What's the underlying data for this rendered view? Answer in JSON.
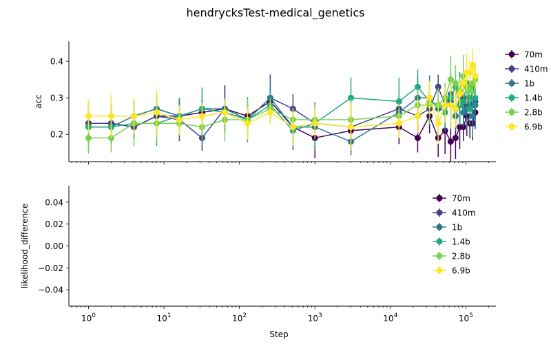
{
  "title": "hendrycksTest-medical_genetics",
  "chart_data": [
    {
      "type": "line",
      "ylabel": "acc",
      "xlabel": "",
      "xscale": "log",
      "xlim": [
        0.55,
        250000
      ],
      "ylim": [
        0.125,
        0.455
      ],
      "yticks": [
        0.2,
        0.3,
        0.4
      ],
      "ytick_labels": [
        "0.2",
        "0.3",
        "0.4"
      ],
      "legend_position": "outside-right",
      "series": [
        {
          "name": "70m",
          "color": "#440154",
          "points": [
            [
              1,
              0.23
            ],
            [
              2,
              0.23
            ],
            [
              4,
              0.22
            ],
            [
              8,
              0.25
            ],
            [
              16,
              0.25
            ],
            [
              32,
              0.26
            ],
            [
              64,
              0.27
            ],
            [
              128,
              0.25
            ],
            [
              256,
              0.29
            ],
            [
              512,
              0.22
            ],
            [
              1000,
              0.19
            ],
            [
              3000,
              0.21
            ],
            [
              13000,
              0.22
            ],
            [
              23000,
              0.19
            ],
            [
              33000,
              0.25
            ],
            [
              43000,
              0.19
            ],
            [
              53000,
              0.21
            ],
            [
              63000,
              0.18
            ],
            [
              73000,
              0.19
            ],
            [
              83000,
              0.22
            ],
            [
              93000,
              0.22
            ],
            [
              103000,
              0.25
            ],
            [
              113000,
              0.23
            ],
            [
              123000,
              0.23
            ],
            [
              133000,
              0.26
            ]
          ]
        },
        {
          "name": "410m",
          "color": "#414487",
          "points": [
            [
              1,
              0.23
            ],
            [
              2,
              0.23
            ],
            [
              4,
              0.22
            ],
            [
              8,
              0.25
            ],
            [
              16,
              0.24
            ],
            [
              32,
              0.19
            ],
            [
              64,
              0.27
            ],
            [
              128,
              0.24
            ],
            [
              256,
              0.3
            ],
            [
              512,
              0.27
            ],
            [
              1000,
              0.23
            ],
            [
              3000,
              0.22
            ],
            [
              13000,
              0.27
            ],
            [
              23000,
              0.25
            ],
            [
              33000,
              0.27
            ],
            [
              43000,
              0.33
            ],
            [
              53000,
              0.28
            ],
            [
              63000,
              0.29
            ],
            [
              73000,
              0.27
            ],
            [
              83000,
              0.28
            ],
            [
              93000,
              0.3
            ],
            [
              103000,
              0.28
            ],
            [
              113000,
              0.3
            ],
            [
              123000,
              0.28
            ],
            [
              133000,
              0.29
            ]
          ]
        },
        {
          "name": "1b",
          "color": "#2a788e",
          "points": [
            [
              1,
              0.22
            ],
            [
              2,
              0.22
            ],
            [
              4,
              0.25
            ],
            [
              8,
              0.27
            ],
            [
              16,
              0.25
            ],
            [
              32,
              0.27
            ],
            [
              64,
              0.27
            ],
            [
              128,
              0.24
            ],
            [
              256,
              0.3
            ],
            [
              512,
              0.22
            ],
            [
              1000,
              0.22
            ],
            [
              3000,
              0.18
            ],
            [
              13000,
              0.26
            ],
            [
              23000,
              0.3
            ],
            [
              33000,
              0.3
            ],
            [
              43000,
              0.27
            ],
            [
              53000,
              0.28
            ],
            [
              63000,
              0.31
            ],
            [
              73000,
              0.25
            ],
            [
              83000,
              0.31
            ],
            [
              93000,
              0.26
            ],
            [
              103000,
              0.27
            ],
            [
              113000,
              0.3
            ],
            [
              123000,
              0.25
            ],
            [
              133000,
              0.28
            ]
          ]
        },
        {
          "name": "1.4b",
          "color": "#22a884",
          "points": [
            [
              1,
              0.22
            ],
            [
              2,
              0.22
            ],
            [
              4,
              0.23
            ],
            [
              8,
              0.23
            ],
            [
              16,
              0.25
            ],
            [
              32,
              0.27
            ],
            [
              64,
              0.26
            ],
            [
              128,
              0.24
            ],
            [
              256,
              0.28
            ],
            [
              512,
              0.21
            ],
            [
              1000,
              0.23
            ],
            [
              3000,
              0.3
            ],
            [
              13000,
              0.29
            ],
            [
              23000,
              0.33
            ],
            [
              33000,
              0.29
            ],
            [
              43000,
              0.28
            ],
            [
              53000,
              0.26
            ],
            [
              63000,
              0.3
            ],
            [
              73000,
              0.33
            ],
            [
              83000,
              0.28
            ],
            [
              93000,
              0.29
            ],
            [
              103000,
              0.34
            ],
            [
              113000,
              0.27
            ],
            [
              123000,
              0.33
            ],
            [
              133000,
              0.3
            ]
          ]
        },
        {
          "name": "2.8b",
          "color": "#7ad151",
          "points": [
            [
              1,
              0.19
            ],
            [
              2,
              0.19
            ],
            [
              4,
              0.23
            ],
            [
              8,
              0.23
            ],
            [
              16,
              0.23
            ],
            [
              32,
              0.22
            ],
            [
              64,
              0.24
            ],
            [
              128,
              0.24
            ],
            [
              256,
              0.27
            ],
            [
              512,
              0.24
            ],
            [
              1000,
              0.24
            ],
            [
              3000,
              0.24
            ],
            [
              13000,
              0.25
            ],
            [
              23000,
              0.28
            ],
            [
              33000,
              0.28
            ],
            [
              43000,
              0.28
            ],
            [
              53000,
              0.3
            ],
            [
              63000,
              0.35
            ],
            [
              73000,
              0.34
            ],
            [
              83000,
              0.32
            ],
            [
              93000,
              0.36
            ],
            [
              103000,
              0.33
            ],
            [
              113000,
              0.32
            ],
            [
              123000,
              0.34
            ],
            [
              133000,
              0.35
            ]
          ]
        },
        {
          "name": "6.9b",
          "color": "#fde725",
          "points": [
            [
              1,
              0.25
            ],
            [
              2,
              0.25
            ],
            [
              4,
              0.25
            ],
            [
              8,
              0.26
            ],
            [
              16,
              0.24
            ],
            [
              32,
              0.25
            ],
            [
              64,
              0.26
            ],
            [
              128,
              0.23
            ],
            [
              256,
              0.26
            ],
            [
              512,
              0.22
            ],
            [
              1000,
              0.23
            ],
            [
              3000,
              0.22
            ],
            [
              13000,
              0.23
            ],
            [
              23000,
              0.25
            ],
            [
              33000,
              0.3
            ],
            [
              43000,
              0.23
            ],
            [
              53000,
              0.28
            ],
            [
              63000,
              0.28
            ],
            [
              73000,
              0.27
            ],
            [
              83000,
              0.31
            ],
            [
              93000,
              0.34
            ],
            [
              103000,
              0.37
            ],
            [
              113000,
              0.37
            ],
            [
              123000,
              0.39
            ],
            [
              133000,
              0.36
            ]
          ]
        }
      ]
    },
    {
      "type": "line",
      "ylabel": "likelihood_difference",
      "xlabel": "Step",
      "xscale": "log",
      "xlim": [
        0.55,
        250000
      ],
      "ylim": [
        -0.055,
        0.055
      ],
      "yticks": [
        -0.04,
        -0.02,
        0.0,
        0.02,
        0.04
      ],
      "ytick_labels": [
        "−0.04",
        "−0.02",
        "0.00",
        "0.02",
        "0.04"
      ],
      "xticks": [
        1,
        10,
        100,
        1000,
        10000,
        100000
      ],
      "xtick_exponents": [
        "0",
        "1",
        "2",
        "3",
        "4",
        "5"
      ],
      "xtick_base": "10",
      "legend_position": "upper-right",
      "series": [
        {
          "name": "70m",
          "color": "#440154",
          "points": []
        },
        {
          "name": "410m",
          "color": "#414487",
          "points": []
        },
        {
          "name": "1b",
          "color": "#2a788e",
          "points": []
        },
        {
          "name": "1.4b",
          "color": "#22a884",
          "points": []
        },
        {
          "name": "2.8b",
          "color": "#7ad151",
          "points": []
        },
        {
          "name": "6.9b",
          "color": "#fde725",
          "points": []
        }
      ]
    }
  ]
}
